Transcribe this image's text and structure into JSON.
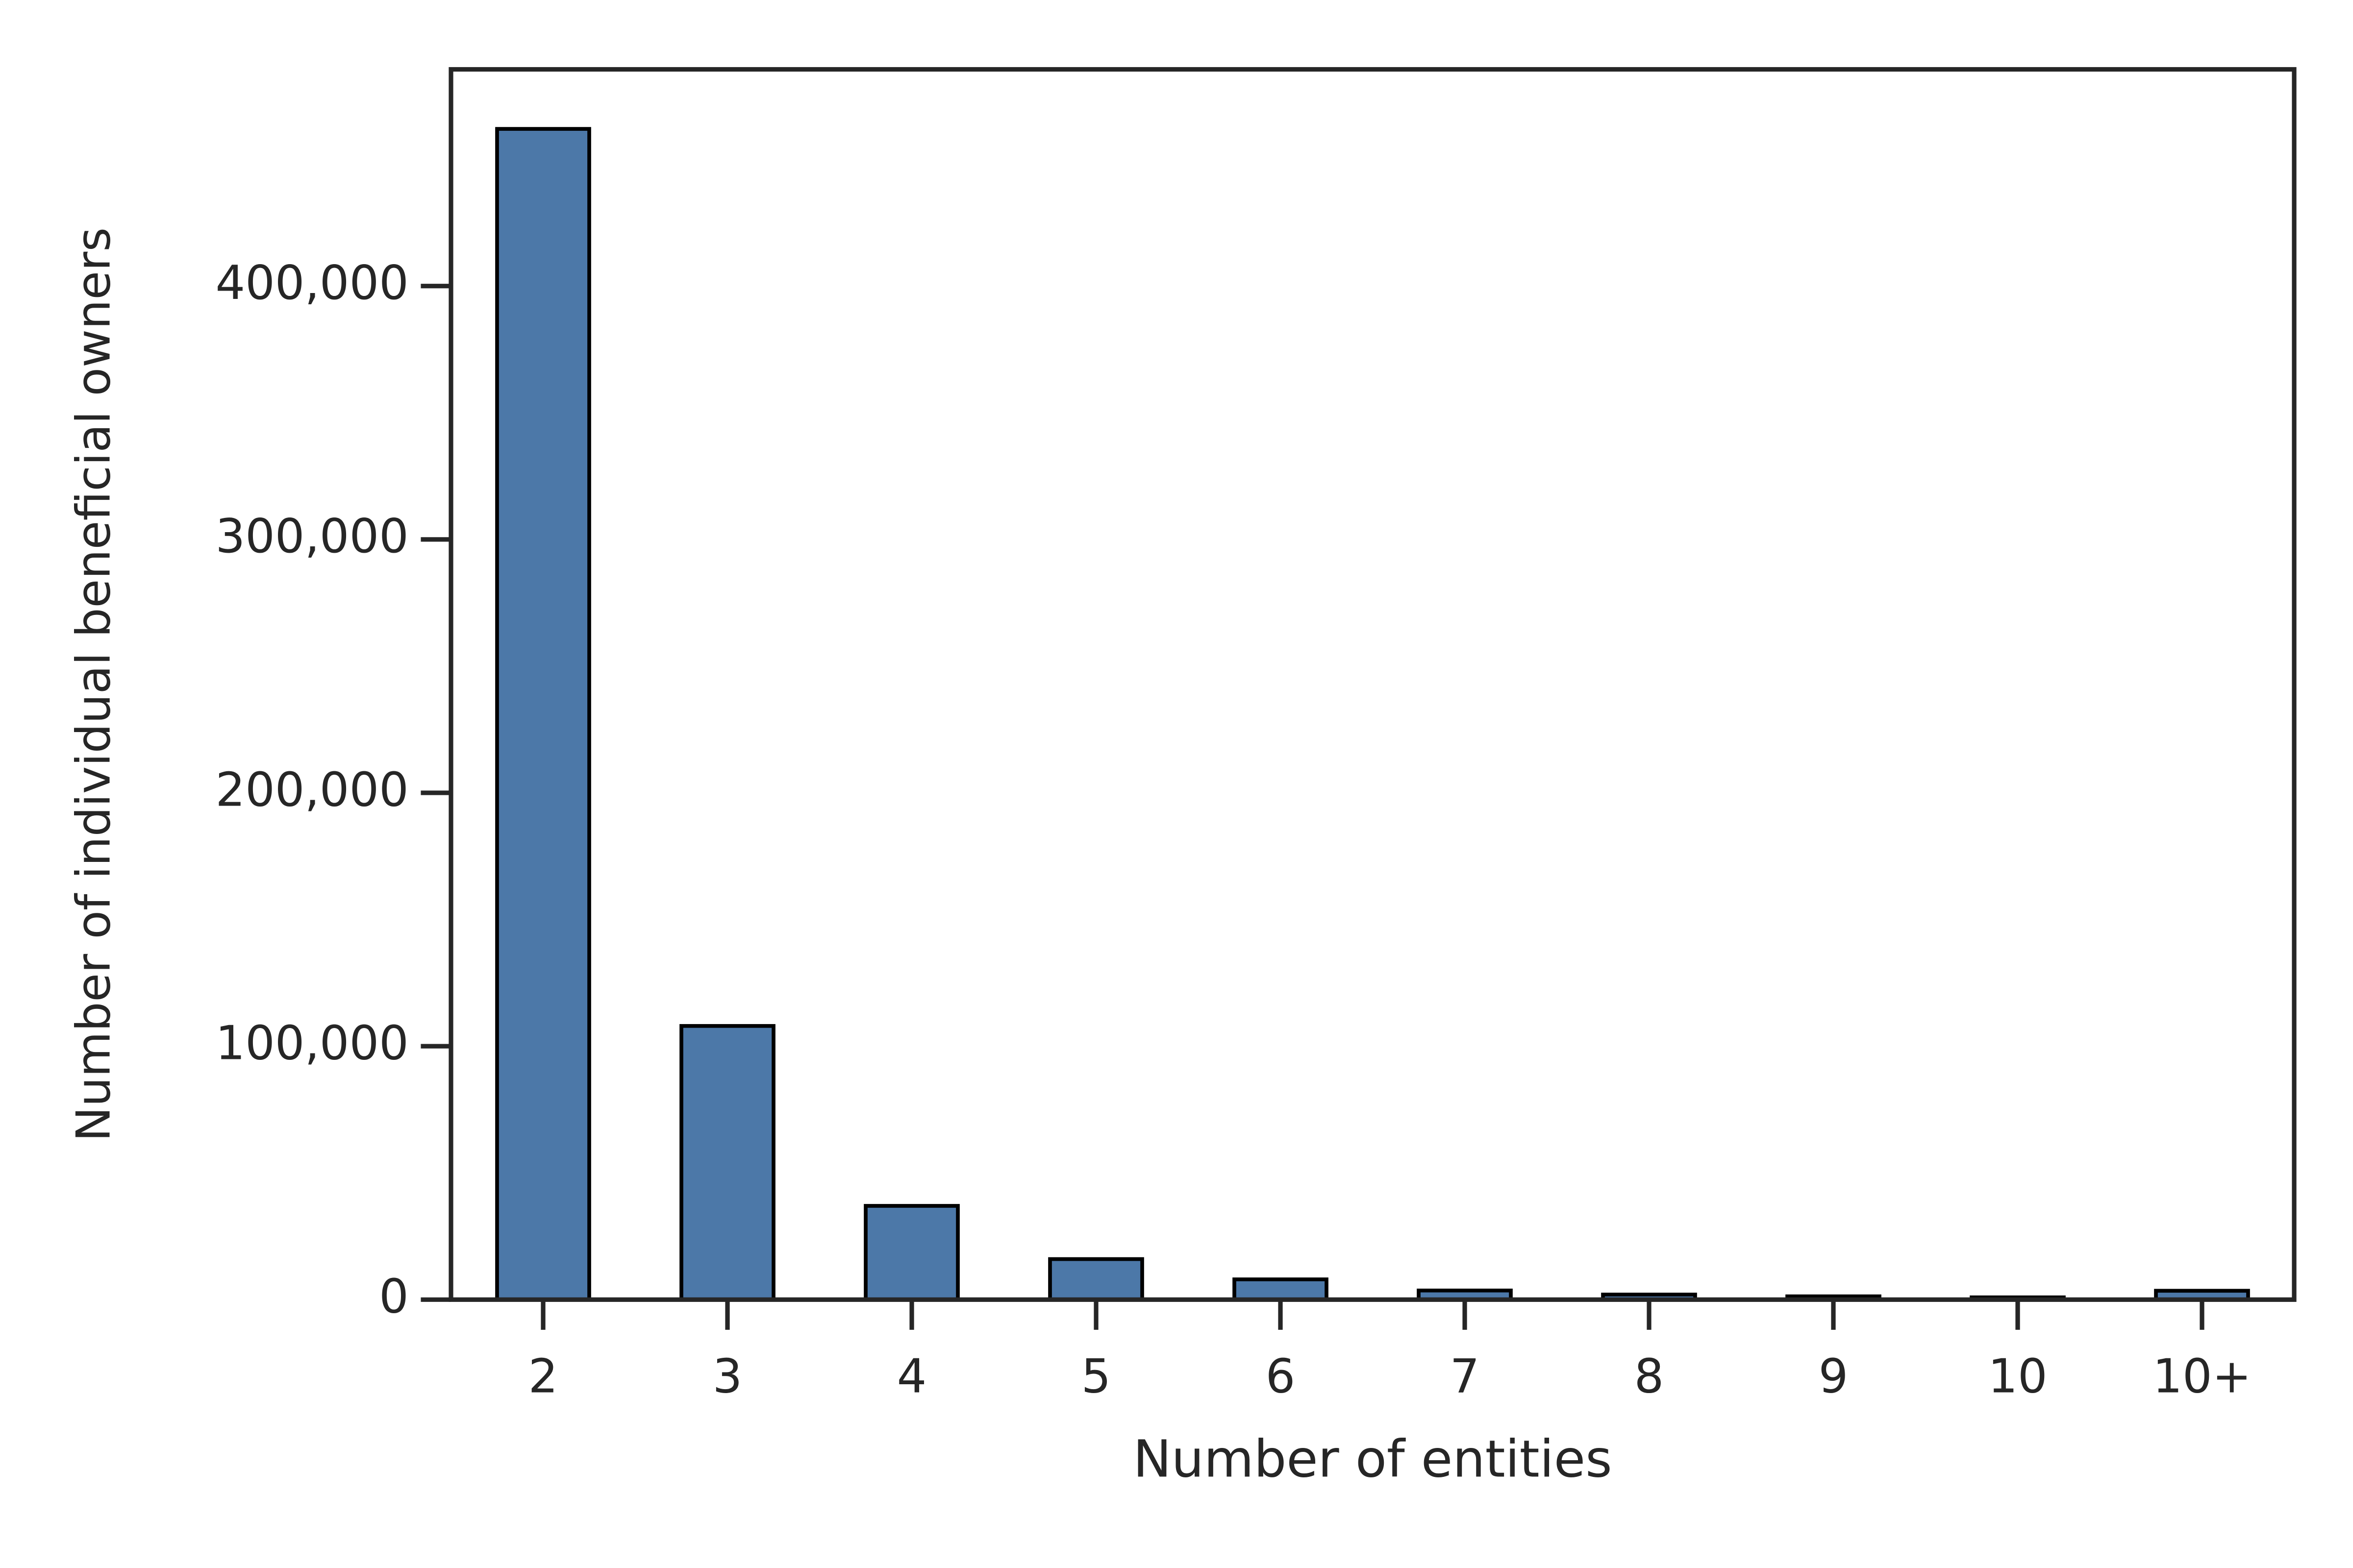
{
  "chart_data": {
    "type": "bar",
    "xlabel": "Number of entities",
    "ylabel": "Number of individual beneficial owners",
    "categories": [
      "2",
      "3",
      "4",
      "5",
      "6",
      "7",
      "8",
      "9",
      "10",
      "10+"
    ],
    "values": [
      462000,
      108000,
      37000,
      16000,
      8000,
      3600,
      2000,
      1300,
      900,
      3500
    ],
    "color": "#4c78a8",
    "ylim": [
      0,
      485500
    ],
    "yticks": [
      0,
      {
        "value": 100000,
        "label": "100,000"
      },
      {
        "value": 200000,
        "label": "200,000"
      },
      {
        "value": 300000,
        "label": "300,000"
      },
      {
        "value": 400000,
        "label": "400,000"
      }
    ]
  }
}
